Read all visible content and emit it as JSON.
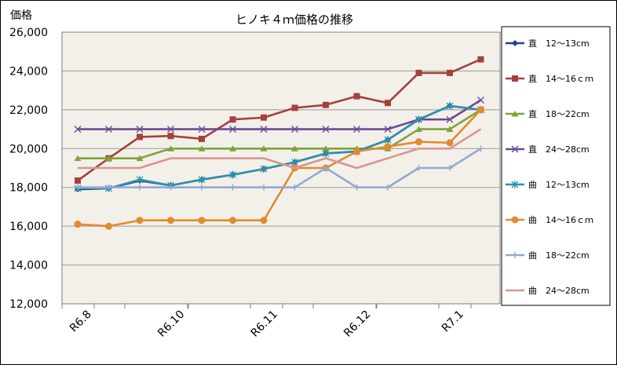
{
  "chart_data": {
    "type": "line",
    "title": "ヒノキ４ｍ価格の推移",
    "ylabel": "価格",
    "xlabel": "",
    "ylim": [
      12000,
      26000
    ],
    "y_ticks": [
      "12,000",
      "14,000",
      "16,000",
      "18,000",
      "20,000",
      "22,000",
      "24,000",
      "26,000"
    ],
    "x_tick_labels": [
      {
        "label": "R6.8",
        "index": 0
      },
      {
        "label": "R6.10",
        "index": 3
      },
      {
        "label": "R6.11",
        "index": 6
      },
      {
        "label": "R6.12",
        "index": 9
      },
      {
        "label": "R7.1",
        "index": 12
      }
    ],
    "n_points": 14,
    "plot_background": "#f3f0e9",
    "grid": "horizontal",
    "legend_position": "right",
    "series": [
      {
        "name": "直　12～13cm",
        "color": "#1f3f8f",
        "marker": "diamond",
        "values": [
          17900,
          17950,
          18350,
          18100,
          18400,
          18650,
          18950,
          19300,
          19750,
          19850,
          20450,
          21500,
          22200,
          22000
        ]
      },
      {
        "name": "直　14～16ｃｍ",
        "color": "#a5403c",
        "marker": "square",
        "values": [
          18350,
          19500,
          20600,
          20650,
          20500,
          21500,
          21600,
          22100,
          22250,
          22700,
          22350,
          23900,
          23900,
          24600
        ]
      },
      {
        "name": "直　18～22cm",
        "color": "#7ea43b",
        "marker": "triangle",
        "values": [
          19500,
          19500,
          19500,
          20000,
          20000,
          20000,
          20000,
          20000,
          20000,
          20000,
          20000,
          21000,
          21000,
          22000
        ]
      },
      {
        "name": "直　24～28cm",
        "color": "#6b4a92",
        "marker": "x",
        "values": [
          21000,
          21000,
          21000,
          21000,
          21000,
          21000,
          21000,
          21000,
          21000,
          21000,
          21000,
          21500,
          21500,
          22500
        ]
      },
      {
        "name": "曲　12～13cm",
        "color": "#2d93a8",
        "marker": "star",
        "values": [
          17950,
          17950,
          18400,
          18100,
          18400,
          18650,
          18950,
          19300,
          19750,
          19850,
          20450,
          21500,
          22200,
          22000
        ]
      },
      {
        "name": "曲　14～16ｃｍ",
        "color": "#e28a2f",
        "marker": "circle",
        "values": [
          16100,
          16000,
          16300,
          16300,
          16300,
          16300,
          16300,
          19000,
          19000,
          19850,
          20100,
          20350,
          20300,
          22000
        ]
      },
      {
        "name": "曲　18～22cm",
        "color": "#93a9d3",
        "marker": "plus",
        "values": [
          18000,
          18000,
          18000,
          18000,
          18000,
          18000,
          18000,
          18000,
          19000,
          18000,
          18000,
          19000,
          19000,
          20000
        ]
      },
      {
        "name": "曲　24～28cm",
        "color": "#d99594",
        "marker": "none",
        "values": [
          19000,
          19000,
          19000,
          19500,
          19500,
          19500,
          19500,
          19000,
          19500,
          19000,
          19500,
          20000,
          20000,
          21000
        ]
      }
    ]
  }
}
